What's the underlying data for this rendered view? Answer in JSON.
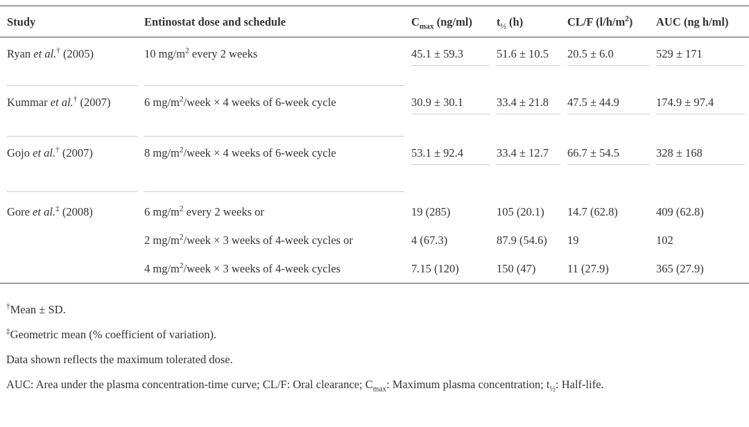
{
  "colors": {
    "text": "#363330",
    "rule_dark": "#4e4c4a",
    "rule_light": "#cfcdcb",
    "background": "#ffffff"
  },
  "table": {
    "headers": {
      "study": "Study",
      "dose": "Entinostat dose and schedule",
      "cmax": {
        "base": "C",
        "sub": "max",
        "unit": " (ng/ml)"
      },
      "thalf": {
        "base": "t",
        "sub": "½",
        "unit": " (h)"
      },
      "clf": {
        "pre": "CL/F (l/h/m",
        "sup": "2",
        "post": ")"
      },
      "auc": "AUC (ng h/ml)"
    },
    "rows": [
      {
        "study": {
          "pre": "Ryan ",
          "etal": "et al.",
          "marker": "†",
          "year": " (2005)"
        },
        "dose": {
          "pre": "10 mg/m",
          "sup": "2",
          "post": " every 2 weeks"
        },
        "cmax": "45.1 ± 59.3",
        "thalf": "51.6 ± 10.5",
        "clf": "20.5 ± 6.0",
        "auc": "529 ± 171"
      },
      {
        "study": {
          "pre": "Kummar ",
          "etal": "et al.",
          "marker": "†",
          "year": " (2007)"
        },
        "dose": {
          "pre": "6 mg/m",
          "sup": "2",
          "post": "/week × 4 weeks of 6-week cycle"
        },
        "cmax": "30.9 ± 30.1",
        "thalf": "33.4 ± 21.8",
        "clf": "47.5 ± 44.9",
        "auc": "174.9 ± 97.4"
      },
      {
        "study": {
          "pre": "Gojo ",
          "etal": "et al.",
          "marker": "†",
          "year": " (2007)"
        },
        "dose": {
          "pre": "8 mg/m",
          "sup": "2",
          "post": "/week × 4 weeks of 6-week cycle"
        },
        "cmax": "53.1 ± 92.4",
        "thalf": "33.4 ± 12.7",
        "clf": "66.7 ± 54.5",
        "auc": "328 ± 168"
      }
    ],
    "gore": {
      "study": {
        "pre": "Gore ",
        "etal": "et al.",
        "marker": "‡",
        "year": " (2008)"
      },
      "lines": [
        {
          "dose": {
            "pre": "6 mg/m",
            "sup": "2",
            "post": " every 2 weeks or"
          },
          "cmax": "19 (285)",
          "thalf": "105 (20.1)",
          "clf": "14.7 (62.8)",
          "auc": "409 (62.8)"
        },
        {
          "dose": {
            "pre": "2 mg/m",
            "sup": "2",
            "post": "/week × 3 weeks of 4-week cycles or"
          },
          "cmax": "4 (67.3)",
          "thalf": "87.9 (54.6)",
          "clf": "19",
          "auc": "102"
        },
        {
          "dose": {
            "pre": "4 mg/m",
            "sup": "2",
            "post": "/week × 3 weeks of 4-week cycles"
          },
          "cmax": "7.15 (120)",
          "thalf": "150 (47)",
          "clf": "11 (27.9)",
          "auc": "365 (27.9)"
        }
      ]
    }
  },
  "footnotes": {
    "f1": {
      "marker": "†",
      "text": "Mean ± SD."
    },
    "f2": {
      "marker": "‡",
      "text": "Geometric mean (% coefficient of variation)."
    },
    "f3": "Data shown reflects the maximum tolerated dose.",
    "f4": {
      "p1": "AUC: Area under the plasma concentration-time curve; CL/F: Oral clearance; C",
      "sub1": "max",
      "p2": ": Maximum plasma concentration; t",
      "sub2": "½",
      "p3": ": Half-life."
    }
  }
}
